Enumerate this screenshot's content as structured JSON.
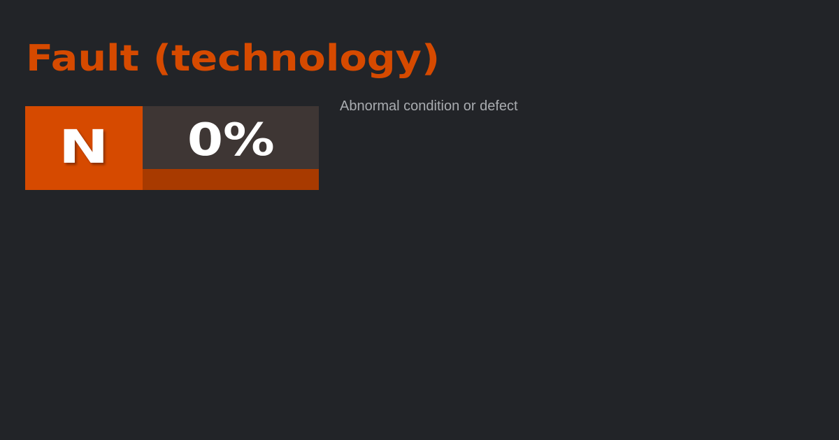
{
  "title": "Fault (technology)",
  "badge": {
    "letter": "N",
    "score_text": "0%",
    "progress_percent": 0,
    "colors": {
      "accent": "#d64a00",
      "score_bg": "#3e3634",
      "bar_bg": "#a83a00"
    }
  },
  "description": "Abnormal condition or defect"
}
